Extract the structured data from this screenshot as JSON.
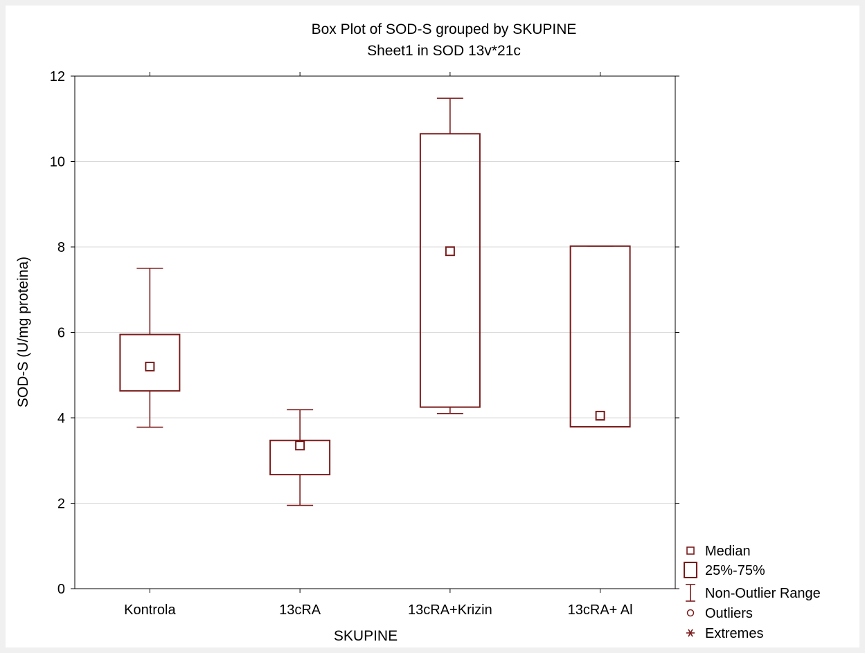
{
  "chart_data": {
    "type": "box",
    "title": "Box Plot of SOD-S grouped by  SKUPINE",
    "subtitle": "Sheet1 in SOD 13v*21c",
    "xlabel": "SKUPINE",
    "ylabel": "SOD-S (U/mg proteina)",
    "ylim": [
      0,
      12
    ],
    "yticks": [
      0,
      2,
      4,
      6,
      8,
      10,
      12
    ],
    "grid": true,
    "legend_position": "bottom-right",
    "categories": [
      "Kontrola",
      "13cRA",
      "13cRA+Krizin",
      "13cRA+ Al"
    ],
    "boxes": [
      {
        "median": 5.2,
        "q1": 4.63,
        "q3": 5.95,
        "min": 3.78,
        "max": 7.5
      },
      {
        "median": 3.35,
        "q1": 2.67,
        "q3": 3.47,
        "min": 1.95,
        "max": 4.19
      },
      {
        "median": 7.9,
        "q1": 4.25,
        "q3": 10.65,
        "min": 4.1,
        "max": 11.48
      },
      {
        "median": 4.05,
        "q1": 3.79,
        "q3": 8.02,
        "min": 3.79,
        "max": 8.02
      }
    ],
    "legend": [
      {
        "symbol": "median-square",
        "label": "Median"
      },
      {
        "symbol": "box",
        "label": "25%-75%"
      },
      {
        "symbol": "whisker",
        "label": "Non-Outlier Range"
      },
      {
        "symbol": "circle",
        "label": "Outliers"
      },
      {
        "symbol": "asterisk",
        "label": "Extremes"
      }
    ],
    "colors": {
      "series": "#7a1a1a",
      "grid": "#d9d9d9",
      "axis": "#000000",
      "page_background": "#f0f0f0",
      "plot_background": "#ffffff"
    }
  }
}
